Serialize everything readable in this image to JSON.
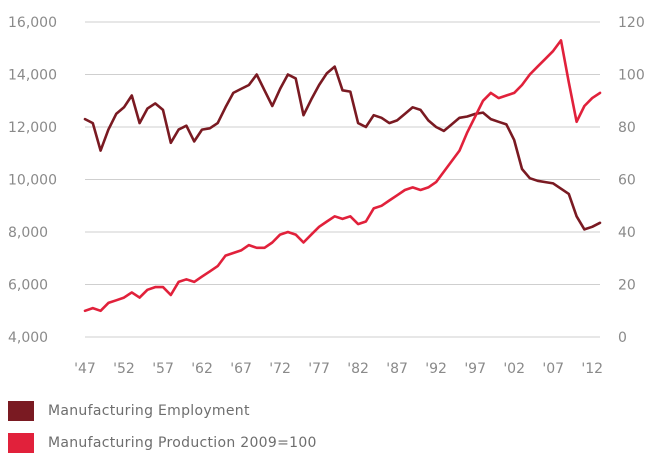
{
  "chart_data": {
    "type": "line",
    "title": "",
    "x": [
      "'47",
      "'48",
      "'49",
      "'50",
      "'51",
      "'52",
      "'53",
      "'54",
      "'55",
      "'56",
      "'57",
      "'58",
      "'59",
      "'60",
      "'61",
      "'62",
      "'63",
      "'64",
      "'65",
      "'66",
      "'67",
      "'68",
      "'69",
      "'70",
      "'71",
      "'72",
      "'73",
      "'74",
      "'75",
      "'76",
      "'77",
      "'78",
      "'79",
      "'80",
      "'81",
      "'82",
      "'83",
      "'84",
      "'85",
      "'86",
      "'87",
      "'88",
      "'89",
      "'90",
      "'91",
      "'92",
      "'93",
      "'94",
      "'95",
      "'96",
      "'97",
      "'98",
      "'99",
      "'00",
      "'01",
      "'02",
      "'03",
      "'04",
      "'05",
      "'06",
      "'07",
      "'08",
      "'09",
      "'10",
      "'11",
      "'12",
      "'13"
    ],
    "x_tick_labels": [
      "'47",
      "'52",
      "'57",
      "'62",
      "'67",
      "'72",
      "'77",
      "'82",
      "'87",
      "'92",
      "'97",
      "'02",
      "'07",
      "'12"
    ],
    "left_axis": {
      "ylim": [
        4000,
        16000
      ],
      "ticks": [
        "4,000",
        "6,000",
        "8,000",
        "10,000",
        "12,000",
        "14,000",
        "16,000"
      ]
    },
    "right_axis": {
      "ylim": [
        0,
        120
      ],
      "ticks": [
        "0",
        "20",
        "40",
        "60",
        "80",
        "100",
        "120"
      ]
    },
    "grid": "horizontal",
    "legend_position": "bottom-left",
    "series": [
      {
        "name": "Manufacturing Employment",
        "axis": "left",
        "color": "#7a1a22",
        "values": [
          12300,
          12150,
          11100,
          11900,
          12500,
          12750,
          13200,
          12150,
          12700,
          12900,
          12650,
          11400,
          11900,
          12050,
          11450,
          11900,
          11950,
          12150,
          12750,
          13300,
          13450,
          13600,
          14000,
          13400,
          12800,
          13450,
          14000,
          13850,
          12450,
          13050,
          13600,
          14050,
          14300,
          13400,
          13350,
          12150,
          12000,
          12450,
          12350,
          12150,
          12250,
          12500,
          12750,
          12650,
          12250,
          12000,
          11850,
          12100,
          12350,
          12400,
          12500,
          12550,
          12300,
          12200,
          12100,
          11500,
          10400,
          10050,
          9950,
          9900,
          9850,
          9650,
          9450,
          8600,
          8100,
          8200,
          8350
        ]
      },
      {
        "name": "Manufacturing Production 2009=100",
        "axis": "right",
        "color": "#e1213b",
        "values": [
          10,
          11,
          10,
          13,
          14,
          15,
          17,
          15,
          18,
          19,
          19,
          16,
          21,
          22,
          21,
          23,
          25,
          27,
          31,
          32,
          33,
          35,
          34,
          34,
          36,
          39,
          40,
          39,
          36,
          39,
          42,
          44,
          46,
          45,
          46,
          43,
          44,
          49,
          50,
          52,
          54,
          56,
          57,
          56,
          57,
          59,
          63,
          67,
          71,
          78,
          84,
          90,
          93,
          91,
          92,
          93,
          96,
          100,
          103,
          106,
          109,
          113,
          97,
          82,
          88,
          91,
          93
        ]
      }
    ]
  }
}
